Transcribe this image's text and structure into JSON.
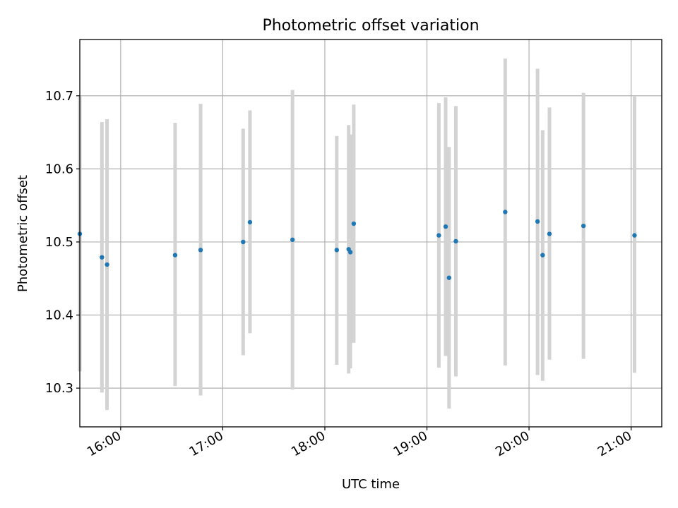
{
  "chart_data": {
    "type": "scatter",
    "title": "Photometric offset variation",
    "xlabel": "UTC time",
    "ylabel": "Photometric offset",
    "x_is_time": true,
    "xlim": [
      "15:36",
      "21:18"
    ],
    "ylim": [
      10.247,
      10.777
    ],
    "x_ticks": [
      "16:00",
      "17:00",
      "18:00",
      "19:00",
      "20:00",
      "21:00"
    ],
    "y_ticks": [
      "10.3",
      "10.4",
      "10.5",
      "10.6",
      "10.7"
    ],
    "grid": true,
    "colors": {
      "point": "#1f77b4",
      "errorbar": "#d3d3d3",
      "grid": "#b0b0b0"
    },
    "series": [
      {
        "x": [
          "15:36",
          "15:49",
          "15:52",
          "16:32",
          "16:47",
          "17:12",
          "17:16",
          "17:41",
          "18:07",
          "18:14",
          "18:15",
          "18:17",
          "19:07",
          "19:11",
          "19:13",
          "19:17",
          "19:46",
          "20:05",
          "20:08",
          "20:12",
          "20:32",
          "21:02"
        ],
        "y": [
          10.511,
          10.479,
          10.469,
          10.482,
          10.489,
          10.5,
          10.527,
          10.503,
          10.489,
          10.49,
          10.486,
          10.525,
          10.509,
          10.521,
          10.451,
          10.501,
          10.541,
          10.528,
          10.482,
          10.511,
          10.522,
          10.509
        ],
        "yerr_low": [
          10.323,
          10.294,
          10.27,
          10.303,
          10.29,
          10.345,
          10.375,
          10.298,
          10.332,
          10.32,
          10.327,
          10.362,
          10.328,
          10.344,
          10.272,
          10.316,
          10.331,
          10.318,
          10.31,
          10.339,
          10.34,
          10.321
        ],
        "yerr_high": [
          10.699,
          10.664,
          10.668,
          10.663,
          10.689,
          10.655,
          10.68,
          10.708,
          10.645,
          10.66,
          10.647,
          10.688,
          10.69,
          10.698,
          10.63,
          10.686,
          10.751,
          10.737,
          10.653,
          10.684,
          10.704,
          10.699
        ]
      }
    ]
  }
}
